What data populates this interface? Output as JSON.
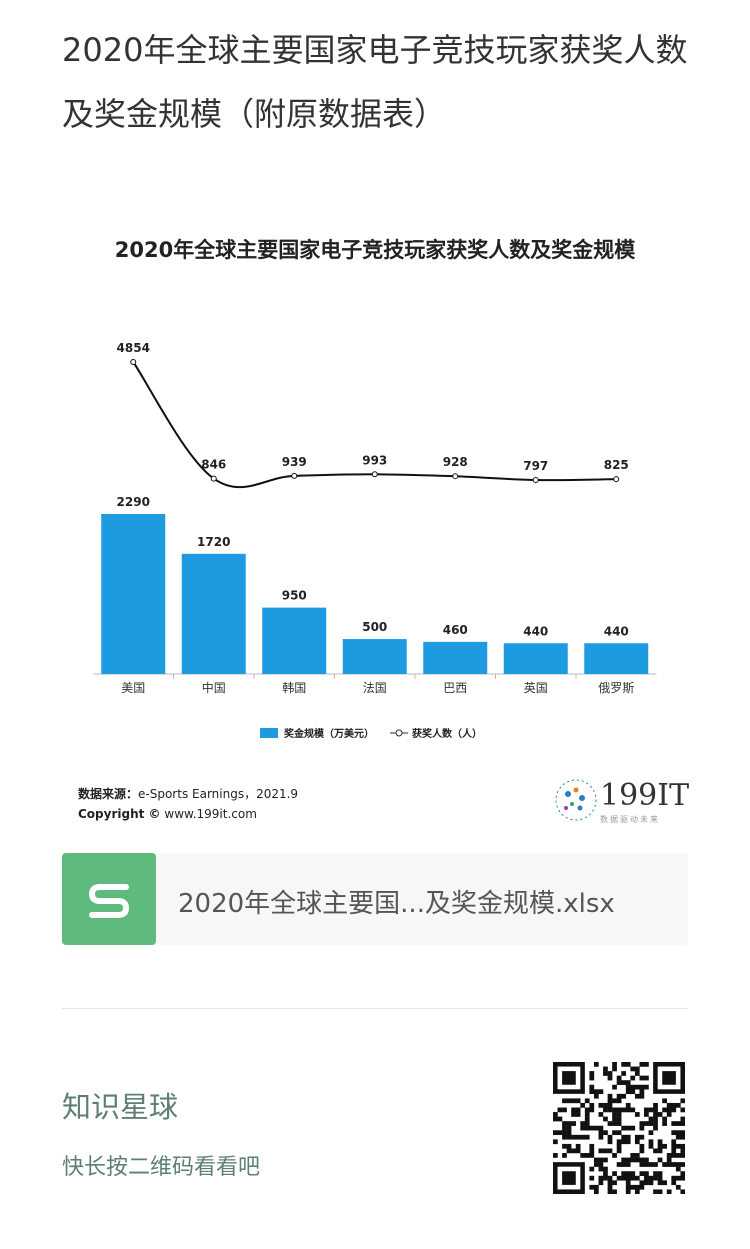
{
  "page": {
    "title": "2020年全球主要国家电子竞技玩家获奖人数及奖金规模（附原数据表）"
  },
  "chart_data": {
    "type": "bar",
    "title": "2020年全球主要国家电子竞技玩家获奖人数及奖金规模",
    "categories": [
      "美国",
      "中国",
      "韩国",
      "法国",
      "巴西",
      "英国",
      "俄罗斯"
    ],
    "series": [
      {
        "name": "奖金规模（万美元）",
        "type": "bar",
        "values": [
          2290,
          1720,
          950,
          500,
          460,
          440,
          440
        ]
      },
      {
        "name": "获奖人数（人）",
        "type": "line",
        "values": [
          4854,
          846,
          939,
          993,
          928,
          797,
          825
        ]
      }
    ],
    "legend": [
      "奖金规模（万美元）",
      "获奖人数（人）"
    ],
    "grid": false,
    "legend_position": "bottom",
    "colors": {
      "bar": "#1e9be0",
      "line": "#111111"
    }
  },
  "source": {
    "label": "数据来源：",
    "text": "e-Sports Earnings，2021.9",
    "copyright_label": "Copyright ©",
    "copyright_text": "www.199it.com"
  },
  "logo": {
    "text": "199IT",
    "sub": "数据驱动未来"
  },
  "file": {
    "name": "2020年全球主要国...及奖金规模.xlsx",
    "icon": "file-s-icon"
  },
  "promo": {
    "title": "知识星球",
    "subtitle": "快长按二维码看看吧"
  }
}
